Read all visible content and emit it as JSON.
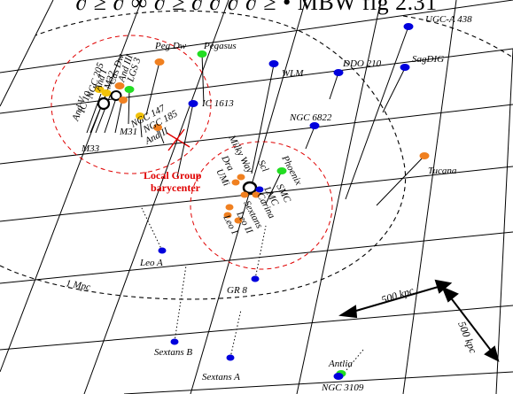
{
  "header_fragment": "∂ ≥ ∂ ∞ ∂ ≥ ∂ ∂ ∂  ∂ ≥  •  MBW fig 2.31",
  "colors": {
    "blue": "#0000dd",
    "orange": "#f08020",
    "green": "#22dd22",
    "yellow": "#f2c20a",
    "red": "#e00000"
  },
  "labels": {
    "peg_dw": "Peg Dw",
    "pegasus": "Pegasus",
    "ugca438": "UGC-A 438",
    "ddo210": "DDO 210",
    "sagdig": "SagDIG",
    "wlm": "WLM",
    "ngc6822": "NGC 6822",
    "ic1613": "IC 1613",
    "lgs3": "LGS 3",
    "and3": "And III",
    "cas_dw": "Cas Dw",
    "and1": "And I",
    "m32": "M32",
    "ngc205": "NGC 205",
    "ic10": "IC 10",
    "and5": "And V",
    "ngc147": "NGC 147",
    "ngc185": "NGC 185",
    "and2": "And II",
    "m31": "M31",
    "m33": "M33",
    "lg_bary1": "Local Group",
    "lg_bary2": "barycenter",
    "milky_way": "Milky Way",
    "dra": "Dra",
    "umi": "UMi",
    "scl": "Scl",
    "phoenix": "Phoenix",
    "lmc": "LMC",
    "smc": "SMC",
    "carina": "Carina",
    "sextans": "Sextans",
    "leo2": "Leo II",
    "leo1": "Leo I",
    "tucana": "Tucana",
    "leo_a": "Leo A",
    "gr8": "GR 8",
    "mpc": "1 Mpc",
    "kpc500a": "500 kpc",
    "kpc500b": "500 kpc",
    "sextans_b": "Sextans B",
    "sextans_a": "Sextans A",
    "antlia": "Antlia",
    "ngc3109": "NGC 3109"
  }
}
